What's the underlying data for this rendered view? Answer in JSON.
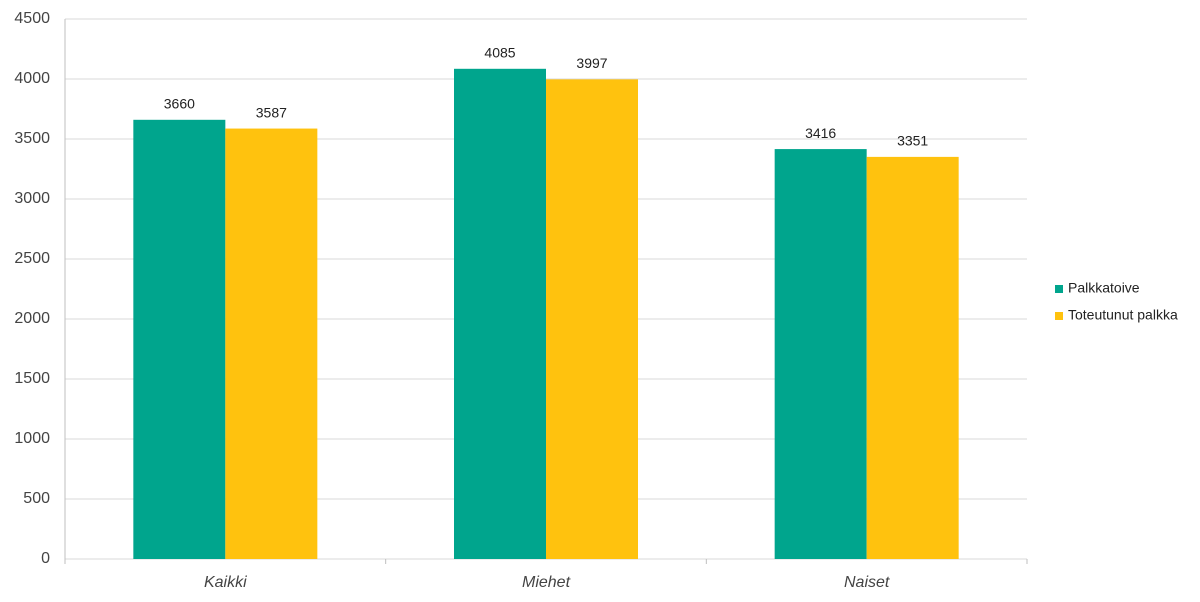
{
  "chart_data": {
    "type": "bar",
    "categories": [
      "Kaikki",
      "Miehet",
      "Naiset"
    ],
    "series": [
      {
        "name": "Palkkatoive",
        "color": "#00a58d",
        "values": [
          3660,
          4085,
          3416
        ]
      },
      {
        "name": "Toteutunut palkka",
        "color": "#ffc20e",
        "values": [
          3587,
          3997,
          3351
        ]
      }
    ],
    "ylim": [
      0,
      4500
    ],
    "yticks": [
      0,
      500,
      1000,
      1500,
      2000,
      2500,
      3000,
      3500,
      4000,
      4500
    ],
    "grid": true,
    "legend": "right",
    "data_labels": true
  }
}
